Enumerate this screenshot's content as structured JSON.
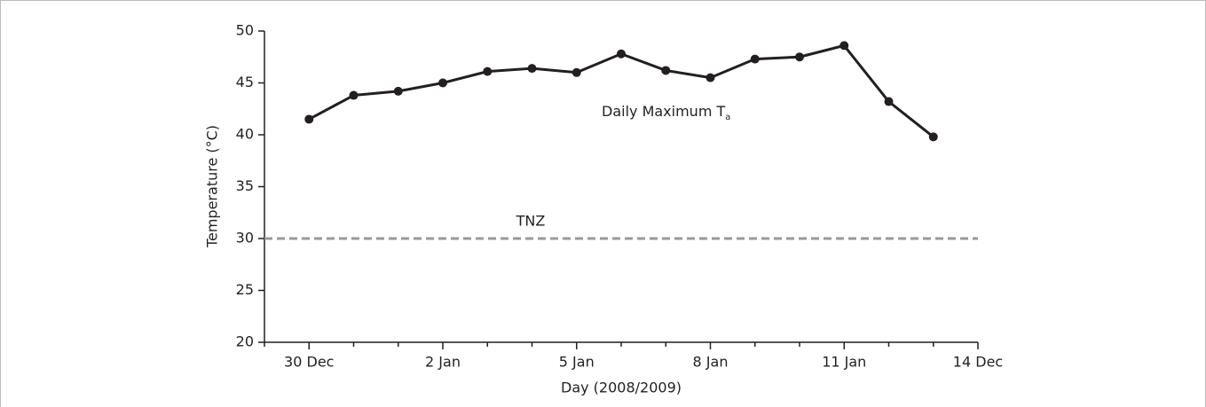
{
  "chart_data": {
    "type": "line",
    "x_label": "Day (2008/2009)",
    "y_label": "Temperature (°C)",
    "categories": [
      null,
      "30 Dec",
      null,
      null,
      "2 Jan",
      null,
      null,
      "5 Jan",
      null,
      null,
      "8 Jan",
      null,
      null,
      "11 Jan",
      null,
      null,
      "14 Dec"
    ],
    "series": [
      {
        "name": "Daily Maximum T",
        "name_subscript": "a",
        "color": "#231f20",
        "values": [
          null,
          41.5,
          43.8,
          44.2,
          45.0,
          46.1,
          46.4,
          46.0,
          47.8,
          46.2,
          45.5,
          47.3,
          47.5,
          48.6,
          43.2,
          39.8,
          null
        ]
      }
    ],
    "reference_line": {
      "value": 30,
      "label": "TNZ",
      "color": "#999999"
    },
    "ylim": [
      20,
      50
    ],
    "yticks": [
      20,
      25,
      30,
      35,
      40,
      45,
      50
    ],
    "grid": false
  }
}
